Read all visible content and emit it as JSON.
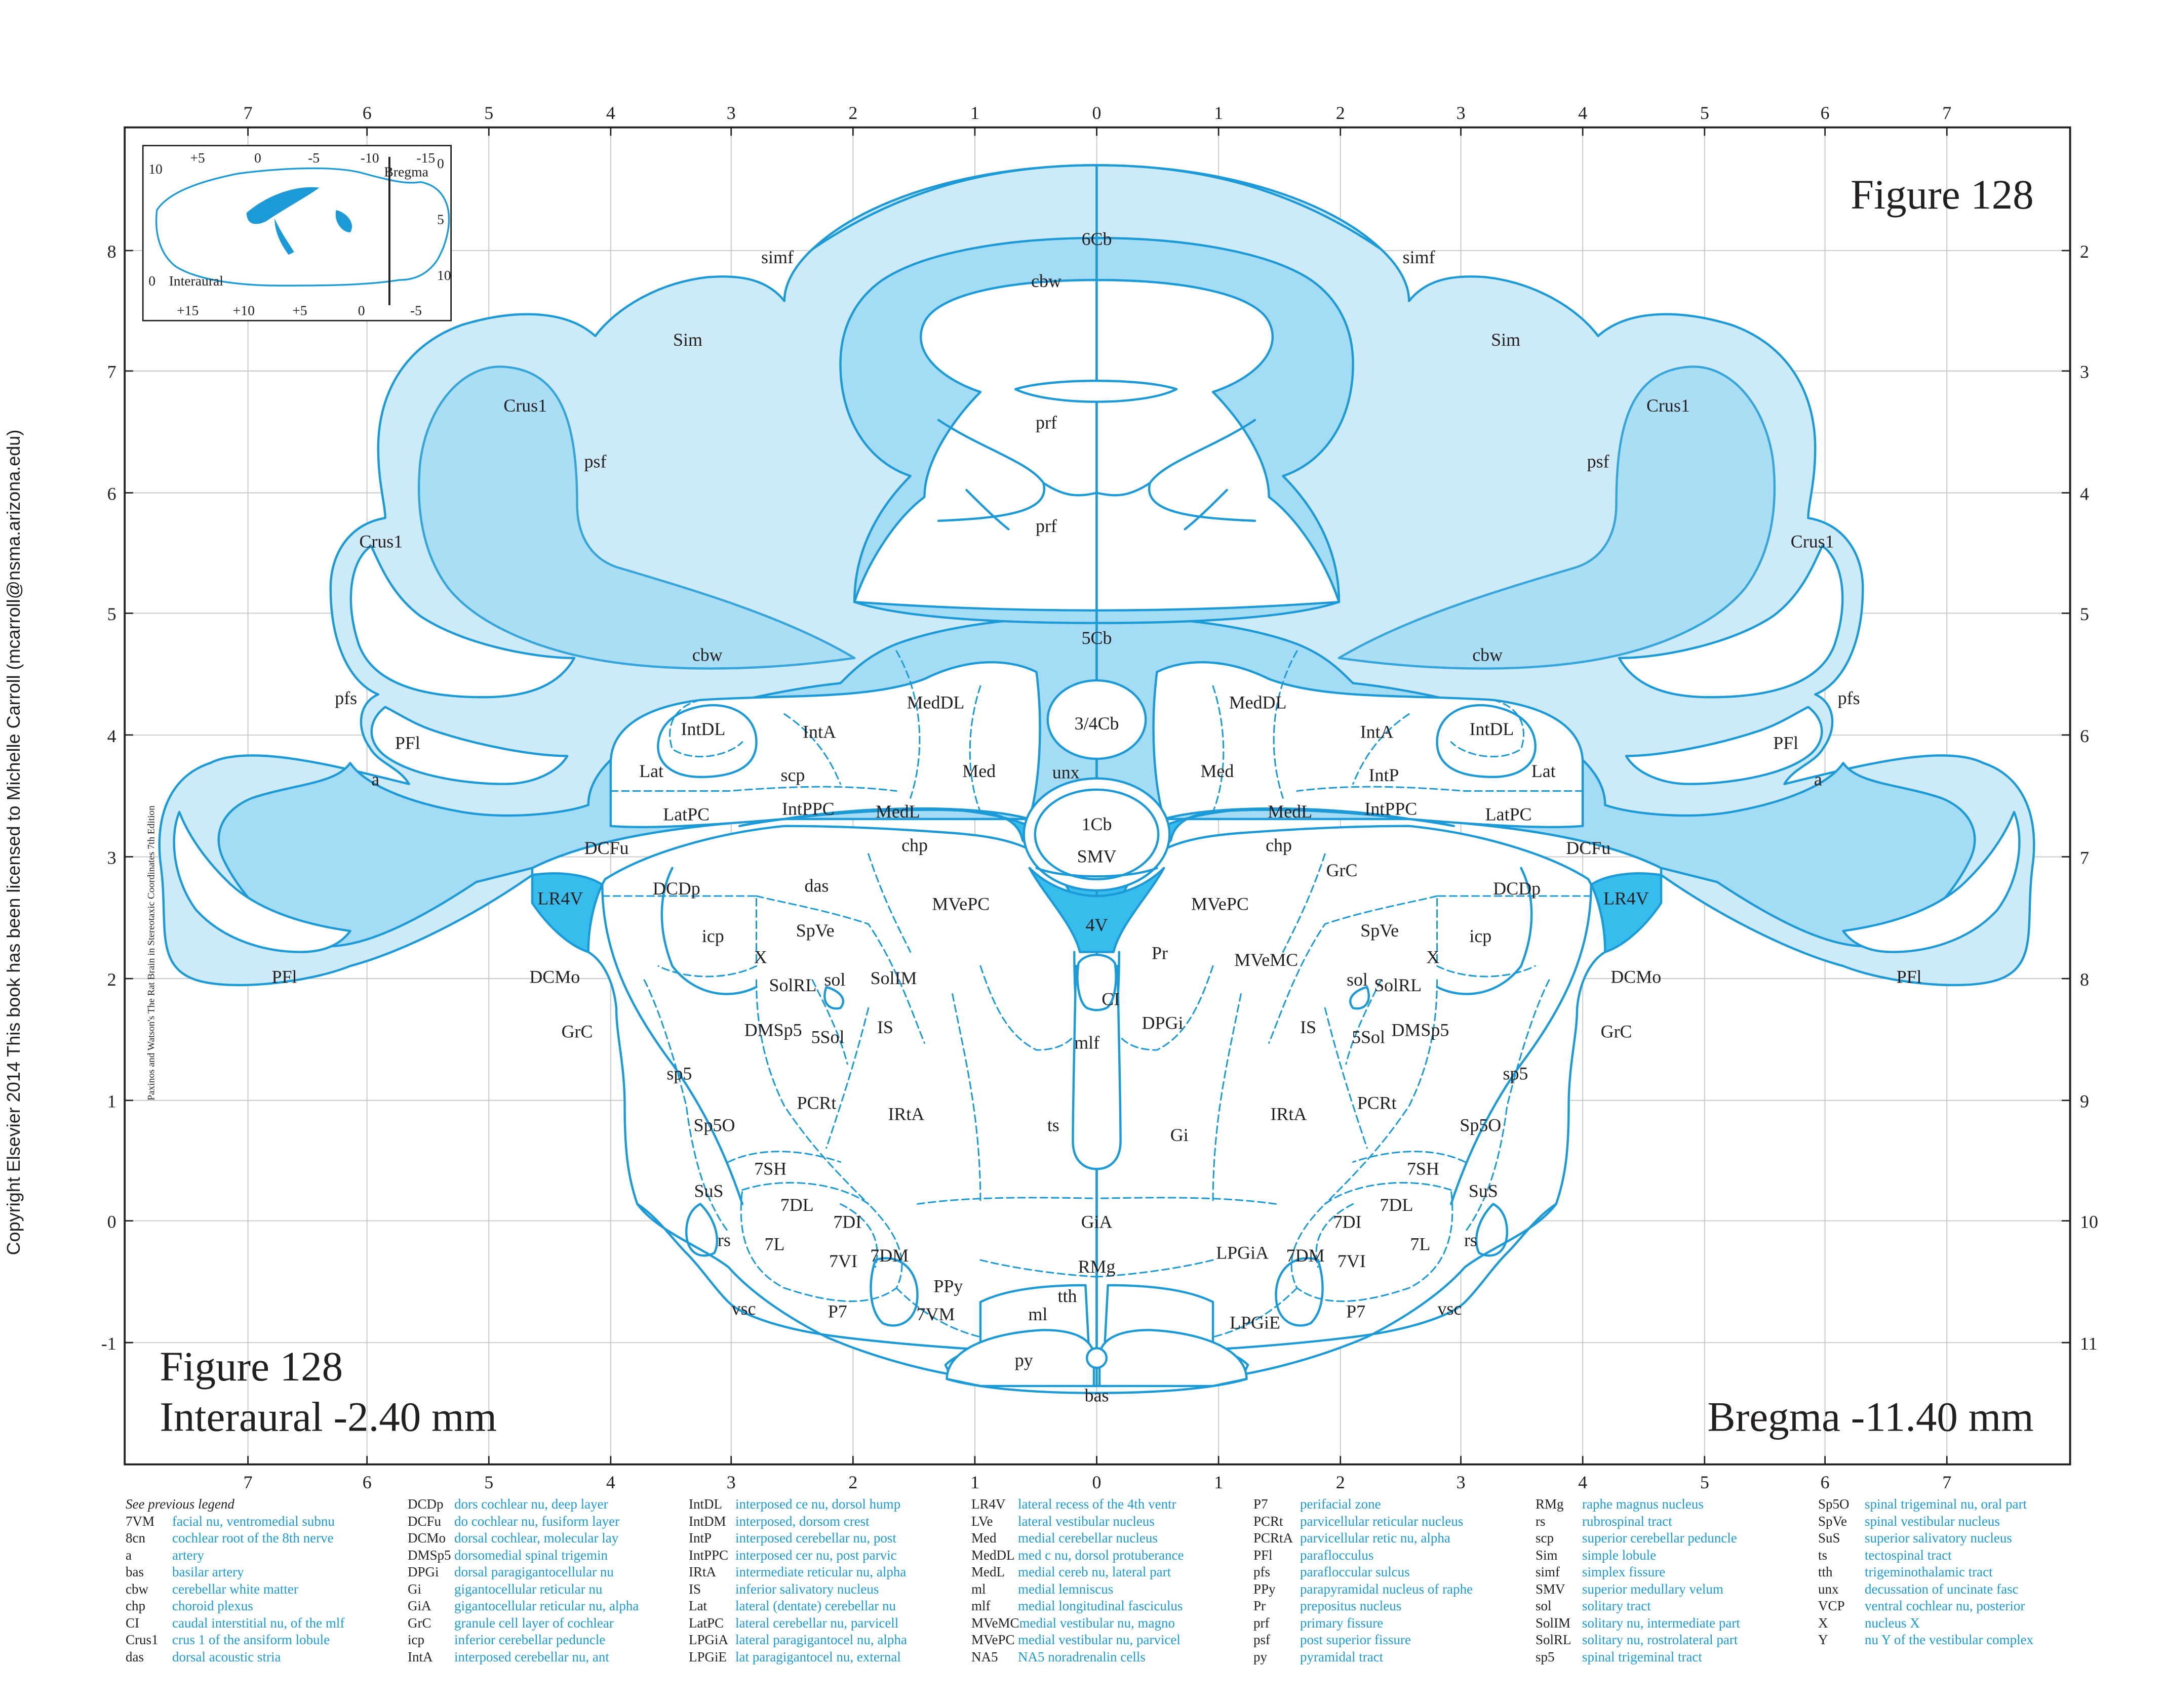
{
  "copyright": "Copyright Elsevier 2014 This book has been licensed to Michelle Carroll (mcarroll@nsma.arizona.edu)",
  "book_credit": "Paxinos and Watson's The Rat Brain in Stereotaxic Coordinates   7th Edition",
  "figure_title_top": "Figure 128",
  "figure_title_bottom": "Figure 128",
  "interaural": "Interaural -2.40 mm",
  "bregma": "Bregma -11.40 mm",
  "inset": {
    "top_ticks": [
      "+5",
      "0",
      "-5",
      "-10",
      "-15"
    ],
    "bottom_ticks": [
      "+15",
      "+10",
      "+5",
      "0",
      "-5"
    ],
    "left_ticks": [
      "10",
      "0"
    ],
    "right_ticks": [
      "0",
      "5",
      "10"
    ],
    "bregma_label": "Bregma",
    "interaural_label": "Interaural"
  },
  "axes": {
    "top": [
      "7",
      "6",
      "5",
      "4",
      "3",
      "2",
      "1",
      "0",
      "1",
      "2",
      "3",
      "4",
      "5",
      "6",
      "7"
    ],
    "bottom": [
      "7",
      "6",
      "5",
      "4",
      "3",
      "2",
      "1",
      "0",
      "1",
      "2",
      "3",
      "4",
      "5",
      "6",
      "7"
    ],
    "left": [
      "8",
      "7",
      "6",
      "5",
      "4",
      "3",
      "2",
      "1",
      "0",
      "-1"
    ],
    "right": [
      "2",
      "3",
      "4",
      "5",
      "6",
      "7",
      "8",
      "9",
      "10",
      "11"
    ]
  },
  "colors": {
    "line": "#1b9ad7",
    "light": "#cdeaf8",
    "mid": "#a5dcf5",
    "dark": "#36bdec",
    "grid": "#c8c8c8",
    "text": "#231f20"
  },
  "labels": {
    "6Cb": "6Cb",
    "cbw": "cbw",
    "simf": "simf",
    "Sim": "Sim",
    "prf": "prf",
    "Crus1": "Crus1",
    "psf": "psf",
    "5Cb": "5Cb",
    "pfs": "pfs",
    "PFl": "PFl",
    "a": "a",
    "MedDL": "MedDL",
    "IntDL": "IntDL",
    "IntA": "IntA",
    "3_4Cb": "3/4Cb",
    "Lat": "Lat",
    "scp": "scp",
    "Med": "Med",
    "unx": "unx",
    "IntP": "IntP",
    "LatPC": "LatPC",
    "IntPPC": "IntPPC",
    "MedL": "MedL",
    "1Cb": "1Cb",
    "SMV": "SMV",
    "DCFu": "DCFu",
    "chp": "chp",
    "GrC": "GrC",
    "DCDp": "DCDp",
    "das": "das",
    "LR4V": "LR4V",
    "MVePC": "MVePC",
    "SpVe": "SpVe",
    "icp": "icp",
    "4V": "4V",
    "Pr": "Pr",
    "MVeMC": "MVeMC",
    "X": "X",
    "sol": "sol",
    "SolIM": "SolIM",
    "SolRL": "SolRL",
    "DCMo": "DCMo",
    "CI": "CI",
    "DMSp5": "DMSp5",
    "5Sol": "5Sol",
    "IS": "IS",
    "DPGi": "DPGi",
    "mlf": "mlf",
    "sp5": "sp5",
    "PCRt": "PCRt",
    "IRtA": "IRtA",
    "ts": "ts",
    "Gi": "Gi",
    "Sp5O": "Sp5O",
    "7SH": "7SH",
    "SuS": "SuS",
    "7DL": "7DL",
    "7DI": "7DI",
    "GiA": "GiA",
    "rs": "rs",
    "7L": "7L",
    "7VI": "7VI",
    "7DM": "7DM",
    "LPGiA": "LPGiA",
    "PPy": "PPy",
    "RMg": "RMg",
    "tth": "tth",
    "vsc": "vsc",
    "P7": "P7",
    "7VM": "7VM",
    "ml": "ml",
    "LPGiE": "LPGiE",
    "py": "py",
    "bas": "bas"
  },
  "legend": {
    "header": "See previous legend",
    "columns": [
      [
        {
          "ab": "7VM",
          "df": "facial nu, ventromedial subnu"
        },
        {
          "ab": "8cn",
          "df": "cochlear root of the 8th nerve"
        },
        {
          "ab": "a",
          "df": "artery"
        },
        {
          "ab": "bas",
          "df": "basilar artery"
        },
        {
          "ab": "cbw",
          "df": "cerebellar white matter"
        },
        {
          "ab": "chp",
          "df": "choroid plexus"
        },
        {
          "ab": "CI",
          "df": "caudal interstitial nu, of the mlf"
        },
        {
          "ab": "Crus1",
          "df": "crus 1 of the ansiform lobule"
        },
        {
          "ab": "das",
          "df": "dorsal acoustic stria"
        }
      ],
      [
        {
          "ab": "DCDp",
          "df": "dors cochlear nu, deep layer"
        },
        {
          "ab": "DCFu",
          "df": "do cochlear nu, fusiform layer"
        },
        {
          "ab": "DCMo",
          "df": "dorsal cochlear, molecular lay"
        },
        {
          "ab": "DMSp5",
          "df": "dorsomedial spinal trigemin"
        },
        {
          "ab": "DPGi",
          "df": "dorsal paragigantocellular nu"
        },
        {
          "ab": "Gi",
          "df": "gigantocellular reticular nu"
        },
        {
          "ab": "GiA",
          "df": "gigantocellular reticular nu, alpha"
        },
        {
          "ab": "GrC",
          "df": "granule cell layer of cochlear"
        },
        {
          "ab": "icp",
          "df": "inferior cerebellar peduncle"
        },
        {
          "ab": "IntA",
          "df": "interposed cerebellar nu, ant"
        }
      ],
      [
        {
          "ab": "IntDL",
          "df": "interposed ce nu, dorsol hump"
        },
        {
          "ab": "IntDM",
          "df": "interposed, dorsom crest"
        },
        {
          "ab": "IntP",
          "df": "interposed cerebellar nu, post"
        },
        {
          "ab": "IntPPC",
          "df": "interposed cer nu, post parvic"
        },
        {
          "ab": "IRtA",
          "df": "intermediate reticular nu, alpha"
        },
        {
          "ab": "IS",
          "df": "inferior salivatory nucleus"
        },
        {
          "ab": "Lat",
          "df": "lateral (dentate) cerebellar nu"
        },
        {
          "ab": "LatPC",
          "df": "lateral cerebellar nu, parvicell"
        },
        {
          "ab": "LPGiA",
          "df": "lateral paragigantocel nu, alpha"
        },
        {
          "ab": "LPGiE",
          "df": "lat paragigantocel nu, external"
        }
      ],
      [
        {
          "ab": "LR4V",
          "df": "lateral recess of the 4th ventr"
        },
        {
          "ab": "LVe",
          "df": "lateral vestibular nucleus"
        },
        {
          "ab": "Med",
          "df": "medial cerebellar nucleus"
        },
        {
          "ab": "MedDL",
          "df": "med c nu, dorsol protuberance"
        },
        {
          "ab": "MedL",
          "df": "medial cereb nu, lateral part"
        },
        {
          "ab": "ml",
          "df": "medial lemniscus"
        },
        {
          "ab": "mlf",
          "df": "medial longitudinal fasciculus"
        },
        {
          "ab": "MVeMC",
          "df": "medial vestibular nu, magno"
        },
        {
          "ab": "MVePC",
          "df": "medial vestibular nu, parvicel"
        },
        {
          "ab": "NA5",
          "df": "NA5 noradrenalin cells"
        }
      ],
      [
        {
          "ab": "P7",
          "df": "perifacial zone"
        },
        {
          "ab": "PCRt",
          "df": "parvicellular reticular nucleus"
        },
        {
          "ab": "PCRtA",
          "df": "parvicellular retic nu, alpha"
        },
        {
          "ab": "PFl",
          "df": "paraflocculus"
        },
        {
          "ab": "pfs",
          "df": "parafloccular sulcus"
        },
        {
          "ab": "PPy",
          "df": "parapyramidal nucleus of raphe"
        },
        {
          "ab": "Pr",
          "df": "prepositus nucleus"
        },
        {
          "ab": "prf",
          "df": "primary fissure"
        },
        {
          "ab": "psf",
          "df": "post superior fissure"
        },
        {
          "ab": "py",
          "df": "pyramidal tract"
        }
      ],
      [
        {
          "ab": "RMg",
          "df": "raphe magnus nucleus"
        },
        {
          "ab": "rs",
          "df": "rubrospinal tract"
        },
        {
          "ab": "scp",
          "df": "superior cerebellar peduncle"
        },
        {
          "ab": "Sim",
          "df": "simple lobule"
        },
        {
          "ab": "simf",
          "df": "simplex fissure"
        },
        {
          "ab": "SMV",
          "df": "superior medullary velum"
        },
        {
          "ab": "sol",
          "df": "solitary tract"
        },
        {
          "ab": "SolIM",
          "df": "solitary nu, intermediate part"
        },
        {
          "ab": "SolRL",
          "df": "solitary nu, rostrolateral part"
        },
        {
          "ab": "sp5",
          "df": "spinal trigeminal tract"
        }
      ],
      [
        {
          "ab": "Sp5O",
          "df": "spinal trigeminal nu, oral part"
        },
        {
          "ab": "SpVe",
          "df": "spinal vestibular nucleus"
        },
        {
          "ab": "SuS",
          "df": "superior salivatory nucleus"
        },
        {
          "ab": "ts",
          "df": "tectospinal tract"
        },
        {
          "ab": "tth",
          "df": "trigeminothalamic tract"
        },
        {
          "ab": "unx",
          "df": "decussation of uncinate fasc"
        },
        {
          "ab": "VCP",
          "df": "ventral cochlear nu, posterior"
        },
        {
          "ab": "X",
          "df": "nucleus X"
        },
        {
          "ab": "Y",
          "df": "nu Y of the vestibular complex"
        }
      ]
    ]
  }
}
